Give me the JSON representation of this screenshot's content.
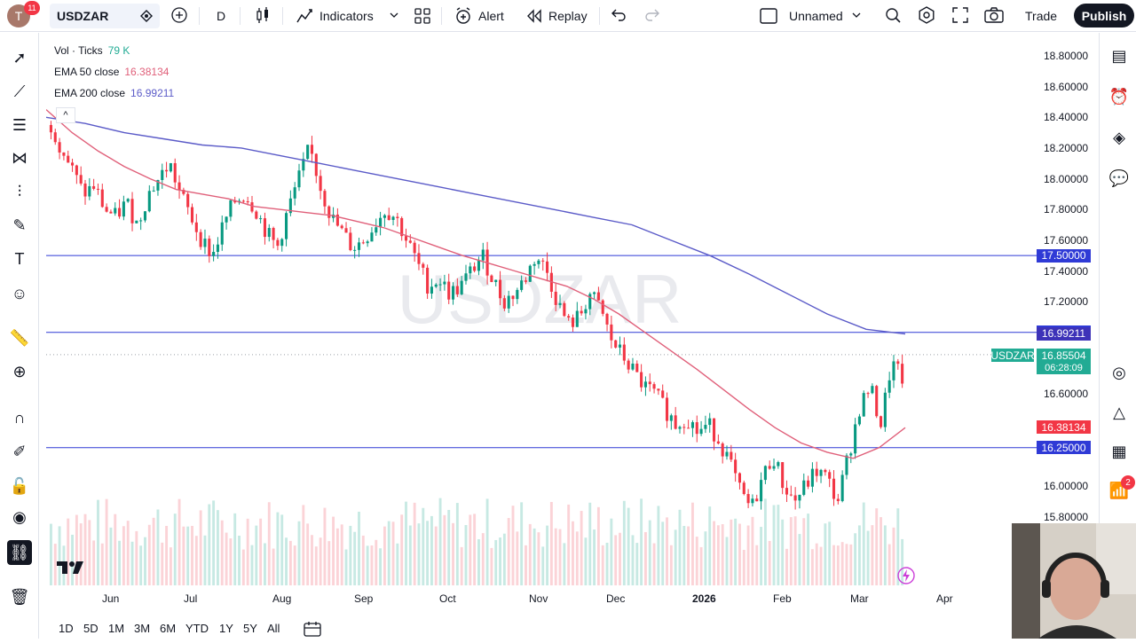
{
  "header": {
    "avatar_letter": "T",
    "notification_count": "11",
    "symbol": "USDZAR",
    "interval": "D",
    "indicators_label": "Indicators",
    "alert_label": "Alert",
    "replay_label": "Replay",
    "layout_name": "Unnamed",
    "trade_label": "Trade",
    "publish_label": "Publish"
  },
  "legend": {
    "vol_label": "Vol · Ticks",
    "vol_value": "79 K",
    "ema50_label": "EMA 50 close",
    "ema50_value": "16.38134",
    "ema200_label": "EMA 200 close",
    "ema200_value": "16.99211"
  },
  "watermark": "USDZAR",
  "right_badges": {
    "alerts": "2"
  },
  "colors": {
    "up": "#089981",
    "down": "#f23645",
    "ema50": "#e0607a",
    "ema200": "#5b5bc8",
    "hline": "#2f3ad6",
    "vol_up": "#c7e9e3",
    "vol_down": "#fbd3d7"
  },
  "chart_data": {
    "type": "candlestick",
    "y_ticks": [
      "18.80000",
      "18.60000",
      "18.40000",
      "18.20000",
      "18.00000",
      "17.80000",
      "17.60000",
      "17.40000",
      "17.20000",
      "16.60000",
      "16.00000",
      "15.80000"
    ],
    "x_ticks": [
      "Jun",
      "Jul",
      "Aug",
      "Sep",
      "Oct",
      "Nov",
      "Dec",
      "2026",
      "Feb",
      "Mar",
      "Apr"
    ],
    "ylim": [
      15.7,
      18.9
    ],
    "horizontal_lines": [
      17.5,
      17.0,
      16.25
    ],
    "price_tags": [
      {
        "label": "17.50000",
        "value": 17.5,
        "color": "#2f3ad6"
      },
      {
        "label": "17.00000",
        "value": 17.0,
        "color": "#2f3ad6"
      },
      {
        "label": "16.99211",
        "value": 16.99211,
        "color": "#3d32b8"
      },
      {
        "label": "16.38134",
        "value": 16.38134,
        "color": "#f23645"
      },
      {
        "label": "16.25000",
        "value": 16.25,
        "color": "#2f3ad6"
      }
    ],
    "last_price": {
      "symbol": "USDZAR",
      "value": "16.85504",
      "countdown": "06:28:09"
    },
    "close_path": [
      18.35,
      18.2,
      18.05,
      17.9,
      17.95,
      17.8,
      17.75,
      17.85,
      17.7,
      17.9,
      18.0,
      18.1,
      17.9,
      17.75,
      17.6,
      17.5,
      17.7,
      17.85,
      17.9,
      17.8,
      17.65,
      17.55,
      17.8,
      18.0,
      18.2,
      17.95,
      17.75,
      17.65,
      17.55,
      17.6,
      17.7,
      17.8,
      17.75,
      17.6,
      17.45,
      17.3,
      17.35,
      17.25,
      17.3,
      17.4,
      17.5,
      17.35,
      17.2,
      17.25,
      17.35,
      17.5,
      17.4,
      17.2,
      17.05,
      17.1,
      17.25,
      17.15,
      16.95,
      16.85,
      16.75,
      16.65,
      16.6,
      16.5,
      16.4,
      16.45,
      16.35,
      16.4,
      16.3,
      16.15,
      15.95,
      15.85,
      16.05,
      16.2,
      16.0,
      15.9,
      16.0,
      16.1,
      16.05,
      15.9,
      16.2,
      16.5,
      16.65,
      16.4,
      16.8,
      16.7
    ],
    "ema50_path": [
      18.45,
      18.3,
      18.18,
      18.08,
      18.0,
      17.93,
      17.9,
      17.87,
      17.82,
      17.8,
      17.78,
      17.76,
      17.72,
      17.68,
      17.62,
      17.56,
      17.5,
      17.45,
      17.4,
      17.35,
      17.3,
      17.22,
      17.12,
      17.0,
      16.88,
      16.76,
      16.63,
      16.5,
      16.38,
      16.28,
      16.22,
      16.18,
      16.25,
      16.38
    ],
    "ema200_path": [
      18.4,
      18.36,
      18.3,
      18.26,
      18.22,
      18.2,
      18.15,
      18.1,
      18.05,
      18.0,
      17.95,
      17.9,
      17.85,
      17.8,
      17.75,
      17.7,
      17.6,
      17.5,
      17.38,
      17.25,
      17.12,
      17.02,
      16.99
    ]
  },
  "time_ranges": [
    "1D",
    "5D",
    "1M",
    "3M",
    "6M",
    "YTD",
    "1Y",
    "5Y",
    "All"
  ]
}
